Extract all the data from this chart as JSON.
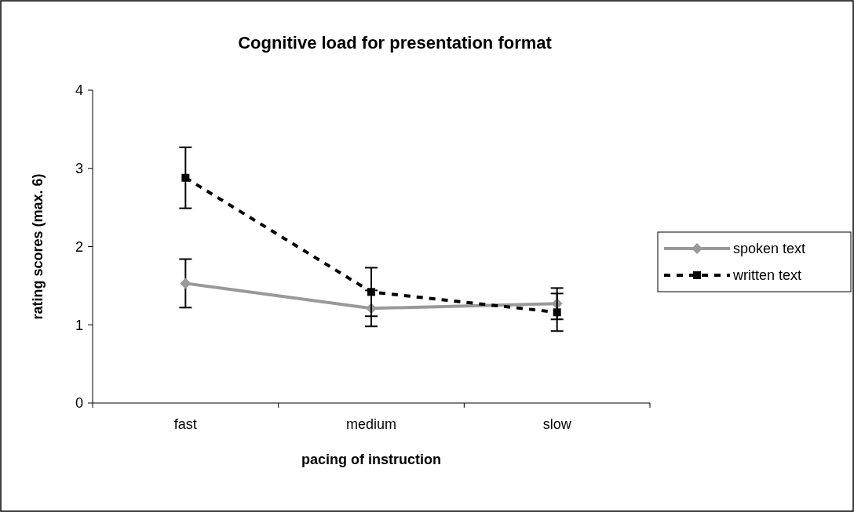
{
  "chart_data": {
    "type": "line",
    "title": "Cognitive load for presentation format",
    "xlabel": "pacing of instruction",
    "ylabel": "rating scores (max. 6)",
    "categories": [
      "fast",
      "medium",
      "slow"
    ],
    "series": [
      {
        "name": "spoken text",
        "color": "#999999",
        "values": [
          1.53,
          1.21,
          1.27
        ],
        "errors": [
          0.31,
          0.23,
          0.2
        ],
        "marker": "diamond",
        "line_style": "solid"
      },
      {
        "name": "written text",
        "color": "#000000",
        "values": [
          2.88,
          1.42,
          1.16
        ],
        "errors": [
          0.39,
          0.31,
          0.24
        ],
        "marker": "square",
        "line_style": "dashed"
      }
    ],
    "ylim": [
      0,
      4
    ],
    "yticks": [
      0,
      1,
      2,
      3,
      4
    ],
    "grid": false,
    "legend": "right"
  }
}
